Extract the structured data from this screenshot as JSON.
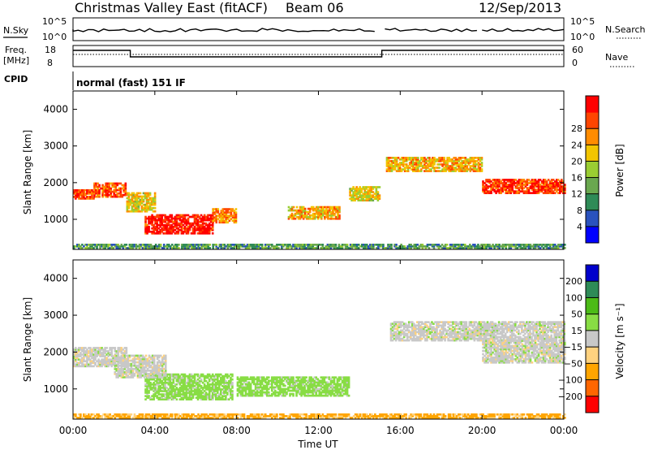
{
  "header": {
    "title": "Christmas Valley East (fitACF)",
    "beam": "Beam 06",
    "date": "12/Sep/2013"
  },
  "nsky_panel": {
    "left_label": "N.Sky",
    "ticks": [
      "10^5",
      "10^0"
    ],
    "right_label": "N.Search",
    "right_ticks": [
      "10^5",
      "10^0"
    ]
  },
  "freq_panel": {
    "left_label_1": "Freq.",
    "left_label_2": "[MHz]",
    "ticks": [
      "18",
      "8"
    ],
    "right_label": "Nave",
    "right_ticks": [
      "60",
      "0"
    ]
  },
  "cpid": {
    "label": "CPID",
    "text": "normal (fast) 151 IF"
  },
  "x_axis": {
    "label": "Time UT",
    "ticks": [
      "00:00",
      "04:00",
      "08:00",
      "12:00",
      "16:00",
      "20:00",
      "00:00"
    ],
    "range_hours": [
      0,
      24
    ]
  },
  "colors": {
    "background": "#ffffff",
    "axis": "#000000"
  },
  "chart_data": [
    {
      "type": "heatmap",
      "ylabel": "Slant Range [km]",
      "xlabel": "",
      "xlim": [
        0,
        24
      ],
      "ylim": [
        180,
        4500
      ],
      "yticks": [
        "1000",
        "2000",
        "3000",
        "4000"
      ],
      "yticks_values": [
        1000,
        2000,
        3000,
        4000
      ],
      "colorbar": {
        "label": "Power [dB]",
        "ticks": [
          "4",
          "8",
          "12",
          "16",
          "20",
          "24",
          "28"
        ],
        "range": [
          0,
          30
        ],
        "colors": [
          "#0000ff",
          "#2a52be",
          "#2e8b57",
          "#6aa84f",
          "#9acd32",
          "#f2c500",
          "#ff8c00",
          "#ff4500",
          "#ff0000"
        ]
      },
      "regions": [
        {
          "t0": 0.0,
          "t1": 1.0,
          "r0": 1550,
          "r1": 1800,
          "power": 26
        },
        {
          "t0": 1.0,
          "t1": 2.6,
          "r0": 1600,
          "r1": 2000,
          "power": 24
        },
        {
          "t0": 2.6,
          "t1": 4.0,
          "r0": 1200,
          "r1": 1700,
          "power": 18
        },
        {
          "t0": 3.5,
          "t1": 6.8,
          "r0": 600,
          "r1": 1100,
          "power": 28
        },
        {
          "t0": 6.8,
          "t1": 8.0,
          "r0": 900,
          "r1": 1300,
          "power": 22
        },
        {
          "t0": 10.5,
          "t1": 13.0,
          "r0": 1000,
          "r1": 1350,
          "power": 20
        },
        {
          "t0": 13.5,
          "t1": 15.0,
          "r0": 1500,
          "r1": 1900,
          "power": 18
        },
        {
          "t0": 15.3,
          "t1": 20.0,
          "r0": 2300,
          "r1": 2700,
          "power": 20
        },
        {
          "t0": 20.0,
          "t1": 24.0,
          "r0": 1700,
          "r1": 2100,
          "power": 26
        },
        {
          "t0": 0.0,
          "t1": 24.0,
          "r0": 200,
          "r1": 320,
          "power": 10
        }
      ]
    },
    {
      "type": "heatmap",
      "ylabel": "Slant Range [km]",
      "xlabel": "Time UT",
      "xlim": [
        0,
        24
      ],
      "ylim": [
        180,
        4500
      ],
      "yticks": [
        "1000",
        "2000",
        "3000",
        "4000"
      ],
      "yticks_values": [
        1000,
        2000,
        3000,
        4000
      ],
      "colorbar": {
        "label": "Velocity [m s⁻¹]",
        "ticks": [
          "200",
          "100",
          "50",
          "15",
          "−15",
          "−50",
          "−100",
          "−200"
        ],
        "colors": [
          "#0000cc",
          "#2e8b57",
          "#4cbb17",
          "#88dd44",
          "#c8c8c8",
          "#ffd27f",
          "#ffa500",
          "#ff6600",
          "#ff0000"
        ]
      },
      "regions": [
        {
          "t0": 0.0,
          "t1": 2.6,
          "r0": 1600,
          "r1": 2100,
          "velocity": 0
        },
        {
          "t0": 3.5,
          "t1": 7.8,
          "r0": 700,
          "r1": 1400,
          "velocity": 30
        },
        {
          "t0": 8.0,
          "t1": 13.5,
          "r0": 800,
          "r1": 1300,
          "velocity": 30
        },
        {
          "t0": 2.0,
          "t1": 4.5,
          "r0": 1300,
          "r1": 1900,
          "velocity": 0
        },
        {
          "t0": 15.5,
          "t1": 24.0,
          "r0": 2300,
          "r1": 2800,
          "velocity": 0
        },
        {
          "t0": 20.0,
          "t1": 24.0,
          "r0": 1700,
          "r1": 2300,
          "velocity": 0
        },
        {
          "t0": 0.0,
          "t1": 24.0,
          "r0": 200,
          "r1": 320,
          "velocity": -60
        }
      ]
    }
  ]
}
